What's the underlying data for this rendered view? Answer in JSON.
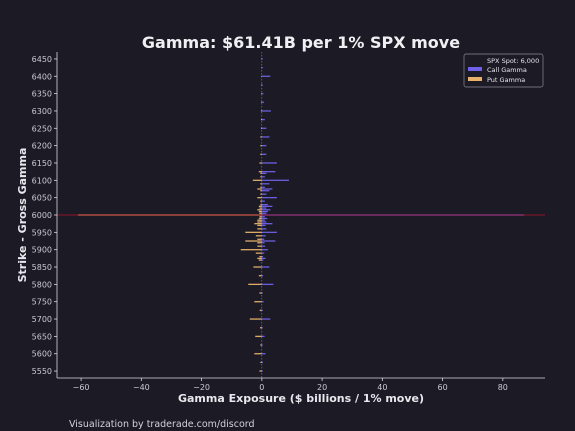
{
  "chart_data": {
    "type": "bar",
    "orientation": "horizontal",
    "title": "Gamma: $61.41B per 1% SPX move",
    "xlabel": "Gamma Exposure ($ billions / 1% move)",
    "ylabel": "Strike - Gross Gamma",
    "xlim": [
      -68,
      94
    ],
    "ylim": [
      5530,
      6470
    ],
    "xticks": [
      -60,
      -40,
      -20,
      0,
      20,
      40,
      60,
      80
    ],
    "yticks": [
      5550,
      5600,
      5650,
      5700,
      5750,
      5800,
      5850,
      5900,
      5950,
      6000,
      6050,
      6100,
      6150,
      6200,
      6250,
      6300,
      6350,
      6400,
      6450
    ],
    "grid": false,
    "legend_position": "top-right",
    "spot_line": {
      "label": "SPX Spot: 6,000",
      "value": 6000,
      "color": "#b3142c"
    },
    "strikes": [
      5550,
      5575,
      5600,
      5625,
      5650,
      5675,
      5700,
      5725,
      5750,
      5775,
      5800,
      5825,
      5850,
      5870,
      5875,
      5880,
      5890,
      5900,
      5910,
      5920,
      5925,
      5930,
      5940,
      5950,
      5960,
      5970,
      5975,
      5980,
      5985,
      5990,
      5995,
      6000,
      6005,
      6010,
      6015,
      6020,
      6025,
      6030,
      6040,
      6050,
      6060,
      6070,
      6075,
      6080,
      6090,
      6100,
      6110,
      6120,
      6125,
      6150,
      6175,
      6200,
      6225,
      6250,
      6275,
      6300,
      6325,
      6350,
      6375,
      6400,
      6425,
      6450
    ],
    "series": [
      {
        "name": "Call Gamma",
        "color": "#6f62e8",
        "values": [
          0.3,
          0.4,
          1.2,
          0.3,
          0.9,
          0.3,
          2.8,
          0.3,
          0.6,
          0.3,
          3.8,
          0.4,
          2.5,
          0.5,
          1.2,
          0.4,
          0.8,
          2.0,
          1.1,
          0.9,
          4.5,
          0.8,
          1.3,
          5.0,
          1.5,
          1.2,
          3.5,
          1.5,
          1.0,
          1.8,
          1.0,
          87.0,
          1.5,
          2.0,
          2.8,
          1.5,
          3.5,
          2.0,
          1.0,
          5.0,
          1.5,
          2.5,
          3.5,
          1.0,
          2.5,
          9.0,
          1.0,
          1.5,
          4.5,
          5.0,
          1.5,
          1.5,
          2.5,
          1.5,
          1.0,
          3.0,
          0.7,
          0.5,
          0.3,
          2.8,
          0.3,
          0.3
        ]
      },
      {
        "name": "Put Gamma",
        "color": "#e9b26b",
        "values": [
          -0.8,
          -0.5,
          -2.5,
          -0.5,
          -2.2,
          -0.6,
          -4.0,
          -0.7,
          -2.5,
          -0.8,
          -4.5,
          -1.0,
          -2.8,
          -1.0,
          -1.5,
          -0.8,
          -2.0,
          -7.0,
          -1.5,
          -1.5,
          -5.5,
          -1.5,
          -2.0,
          -5.5,
          -1.5,
          -1.5,
          -2.5,
          -1.5,
          -1.5,
          -1.0,
          -0.8,
          -61.0,
          -0.8,
          -1.0,
          -1.5,
          -0.8,
          -1.0,
          -0.5,
          -0.5,
          -1.5,
          -0.5,
          -0.5,
          -1.5,
          -0.5,
          -0.5,
          -3.0,
          -0.5,
          -0.5,
          -1.0,
          -0.8,
          -0.5,
          -0.5,
          -0.5,
          -0.3,
          -0.3,
          -0.3,
          -0.2,
          -0.2,
          -0.2,
          -0.2,
          -0.2,
          -0.2
        ]
      }
    ]
  },
  "footer": "Visualization by traderade.com/discord"
}
